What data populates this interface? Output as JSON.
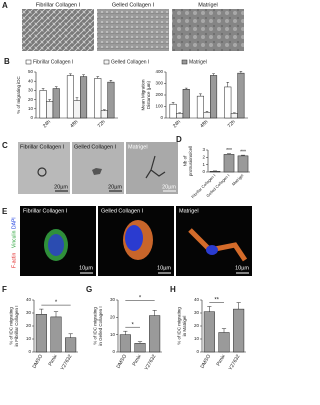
{
  "panel_a": {
    "label": "A",
    "images": [
      "Fibrillar Collagen I",
      "Gelled Collagen I",
      "Matrigel"
    ]
  },
  "panel_c": {
    "label": "C",
    "images": [
      "Fibrillar Collagen I",
      "Gelled Collagen I",
      "Matrigel"
    ],
    "scale_bars": [
      "20µm",
      "20µm",
      "20µm"
    ]
  },
  "panel_e": {
    "label": "E",
    "images": [
      "Fibrillar Collagen I",
      "Gelled Collagen I",
      "Matrigel"
    ],
    "stains": [
      "F-actin",
      "Vinculin",
      "DAPI"
    ],
    "scale_bars": [
      "10µm",
      "10µm",
      "10µm"
    ]
  },
  "chart_data": [
    {
      "type": "bar",
      "label": "B",
      "ylabel": [
        "% of migrating iDC"
      ],
      "categories": [
        "24h",
        "48h",
        "72h"
      ],
      "ylim": [
        0,
        50
      ],
      "yticks": [
        0,
        10,
        20,
        30,
        40,
        50
      ],
      "series": [
        {
          "name": "Fibrillar Collagen I",
          "color": "#ffffff",
          "values": [
            30,
            46,
            43
          ],
          "errors": [
            2,
            2,
            2
          ]
        },
        {
          "name": "Gelled Collagen I",
          "color": "#f4f4f4",
          "values": [
            18,
            19,
            8
          ],
          "errors": [
            2,
            3,
            1
          ]
        },
        {
          "name": "Matrigel",
          "color": "#9a9a9a",
          "values": [
            32,
            45,
            39
          ],
          "errors": [
            2,
            2,
            2
          ]
        }
      ]
    },
    {
      "type": "bar",
      "ylabel": [
        "Mean Migration",
        "Distance (µm)"
      ],
      "categories": [
        "24h",
        "48h",
        "72h"
      ],
      "ylim": [
        0,
        400
      ],
      "yticks": [
        0,
        100,
        200,
        300,
        400
      ],
      "series": [
        {
          "color": "#ffffff",
          "values": [
            120,
            190,
            270
          ],
          "errors": [
            15,
            20,
            40
          ]
        },
        {
          "color": "#f4f4f4",
          "values": [
            40,
            50,
            40
          ],
          "errors": [
            5,
            8,
            5
          ]
        },
        {
          "color": "#9a9a9a",
          "values": [
            250,
            370,
            390
          ],
          "errors": [
            10,
            15,
            15
          ]
        }
      ]
    },
    {
      "type": "bar",
      "label": "D",
      "ylabel": [
        "Nb of",
        "protrusions/cell"
      ],
      "categories": [
        "Fibrillar Collagen I",
        "Gelled Collagen I",
        "Matrigel"
      ],
      "ylim": [
        0,
        3
      ],
      "yticks": [
        0,
        1,
        2,
        3
      ],
      "series": [
        {
          "color": "#9a9a9a",
          "values": [
            0.1,
            2.4,
            2.2
          ],
          "errors": [
            0.05,
            0.1,
            0.1
          ]
        }
      ],
      "annotations": [
        "***",
        "***"
      ]
    },
    {
      "type": "bar",
      "label": "F",
      "ylabel": [
        "% of iDC migrating",
        "in Fibrillar Collagen I"
      ],
      "categories": [
        "DMSO",
        "Pimix",
        "Y27632"
      ],
      "ylim": [
        0,
        40
      ],
      "yticks": [
        0,
        10,
        20,
        30,
        40
      ],
      "series": [
        {
          "color": "#9a9a9a",
          "values": [
            29,
            27,
            11
          ],
          "errors": [
            4,
            4,
            3
          ]
        }
      ],
      "annotations": [
        "*"
      ]
    },
    {
      "type": "bar",
      "label": "G",
      "ylabel": [
        "% of iDC migrating",
        "in Gelled Collagen I"
      ],
      "categories": [
        "DMSO",
        "Pimix",
        "Y27632"
      ],
      "ylim": [
        0,
        30
      ],
      "yticks": [
        0,
        10,
        20,
        30
      ],
      "series": [
        {
          "color": "#9a9a9a",
          "values": [
            10,
            5,
            21
          ],
          "errors": [
            2,
            1,
            3
          ]
        }
      ],
      "annotations": [
        "*",
        "*"
      ]
    },
    {
      "type": "bar",
      "label": "H",
      "ylabel": [
        "% of iDC migrating",
        "in Matrigel"
      ],
      "categories": [
        "DMSO",
        "Pimix",
        "Y27632"
      ],
      "ylim": [
        0,
        40
      ],
      "yticks": [
        0,
        10,
        20,
        30,
        40
      ],
      "series": [
        {
          "color": "#9a9a9a",
          "values": [
            31,
            15,
            33
          ],
          "errors": [
            4,
            3,
            5
          ]
        }
      ],
      "annotations": [
        "**"
      ]
    }
  ]
}
